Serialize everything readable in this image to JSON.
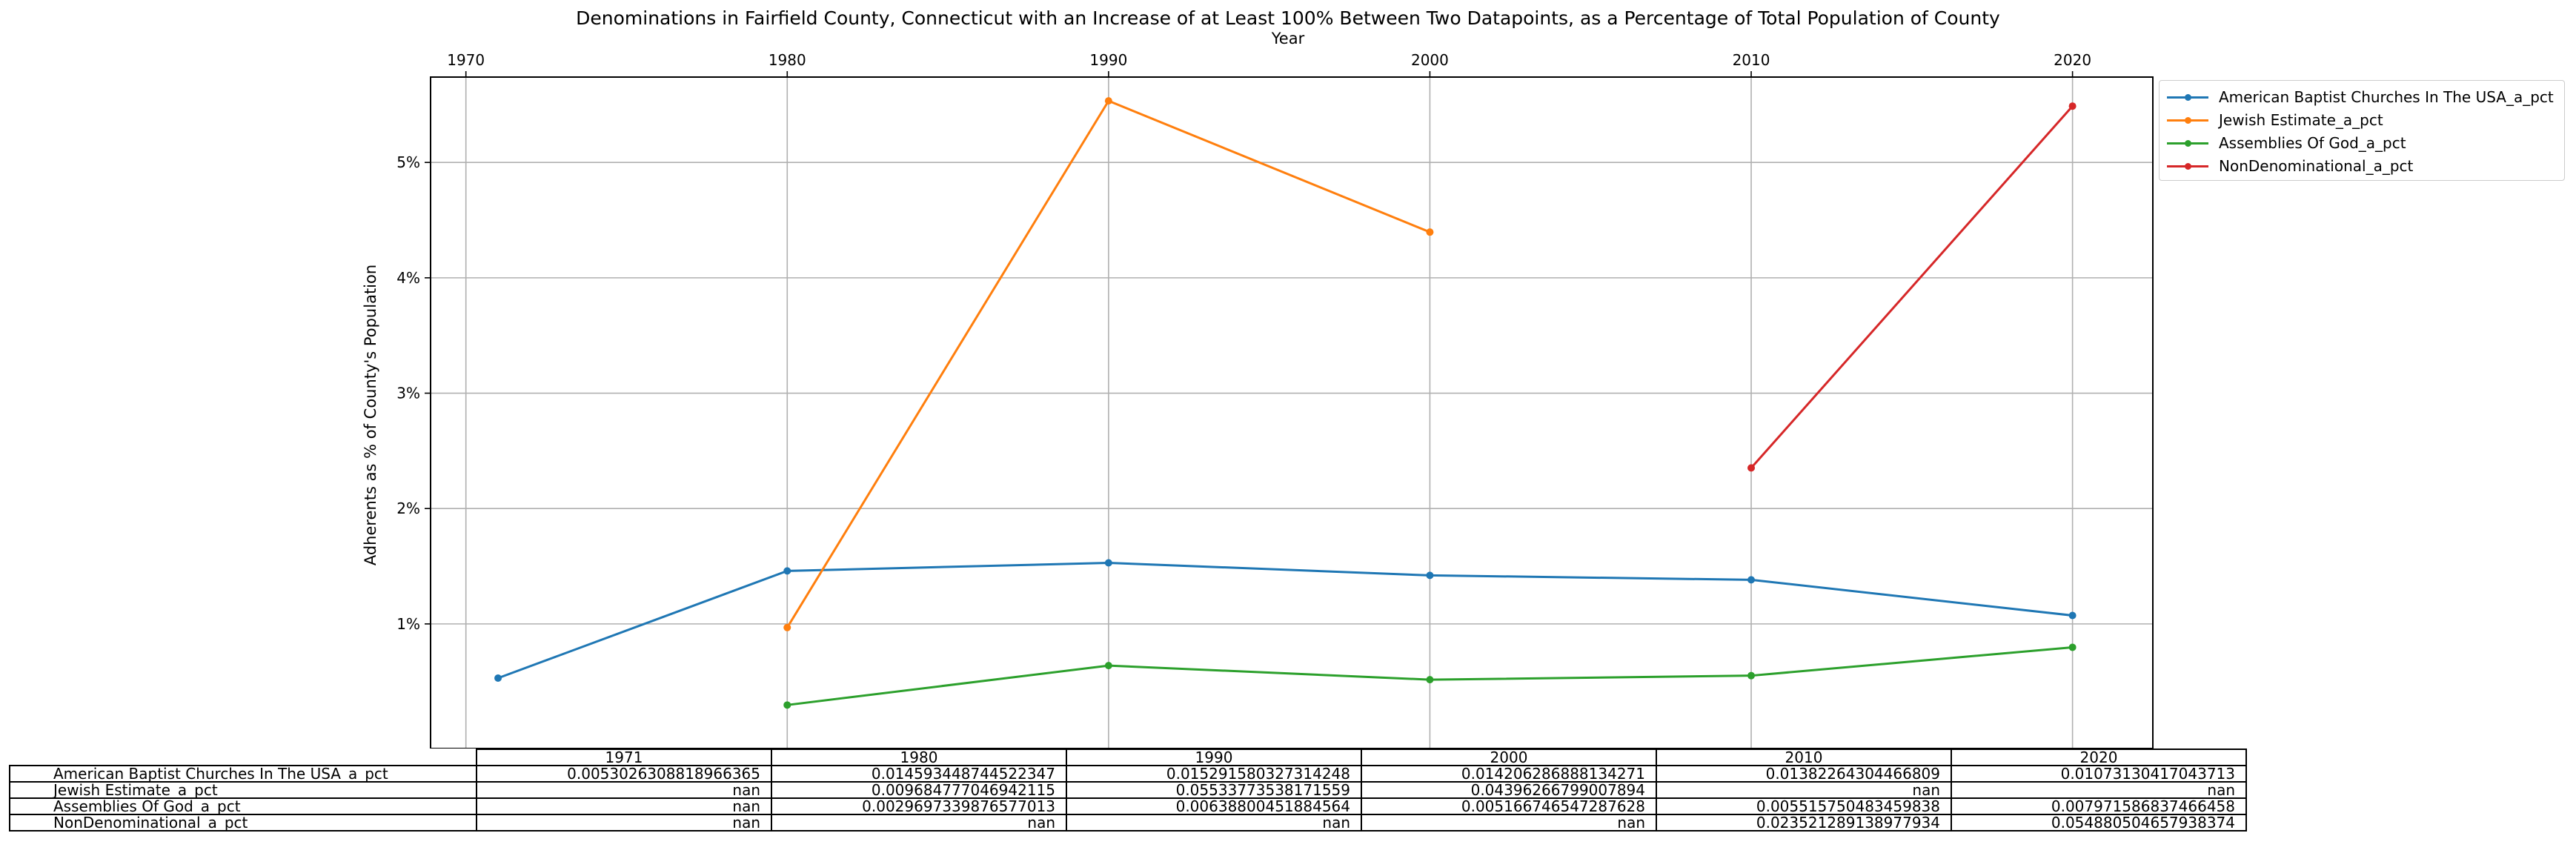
{
  "chart_data": {
    "type": "line",
    "title": "Denominations in Fairfield County, Connecticut with an Increase of at Least 100% Between Two Datapoints, as a Percentage of Total Population of County",
    "xlabel": "Year",
    "ylabel": "Adherents as % of County's Population",
    "x_ticks": [
      "1970",
      "1980",
      "1990",
      "2000",
      "2010",
      "2020"
    ],
    "x_tick_values": [
      1970,
      1980,
      1990,
      2000,
      2010,
      2020
    ],
    "y_ticks": [
      "1%",
      "2%",
      "3%",
      "4%",
      "5%"
    ],
    "y_tick_values": [
      0.01,
      0.02,
      0.03,
      0.04,
      0.05
    ],
    "xlim": [
      1968.9,
      2022.5
    ],
    "ylim": [
      -0.0008,
      0.0574
    ],
    "grid": true,
    "legend_position": "outside upper-right",
    "x": [
      1971,
      1980,
      1990,
      2000,
      2010,
      2020
    ],
    "series": [
      {
        "name": "American Baptist Churches In The USA_a_pct",
        "color": "#1f77b4",
        "values": [
          0.0053026308818966365,
          0.014593448744522347,
          0.015291580327314248,
          0.014206286888134271,
          0.01382264304466809,
          0.01073130417043713
        ]
      },
      {
        "name": "Jewish Estimate_a_pct",
        "color": "#ff7f0e",
        "values": [
          null,
          0.009684777046942115,
          0.05533773538171559,
          0.04396266799007894,
          null,
          null
        ]
      },
      {
        "name": "Assemblies Of God_a_pct",
        "color": "#2ca02c",
        "values": [
          null,
          0.0029697339876577013,
          0.00638800451884564,
          0.005166746547287628,
          0.005515750483459838,
          0.007971586837466458
        ]
      },
      {
        "name": "NonDenominational_a_pct",
        "color": "#d62728",
        "values": [
          null,
          null,
          null,
          null,
          0.023521289138977934,
          0.054880504657938374
        ]
      }
    ],
    "table": {
      "col_labels": [
        "1971",
        "1980",
        "1990",
        "2000",
        "2010",
        "2020"
      ],
      "rows": [
        {
          "label": "American Baptist Churches In The USA_a_pct",
          "cells": [
            "0.0053026308818966365",
            "0.014593448744522347",
            "0.015291580327314248",
            "0.014206286888134271",
            "0.01382264304466809",
            "0.01073130417043713"
          ]
        },
        {
          "label": "Jewish Estimate_a_pct",
          "cells": [
            "nan",
            "0.009684777046942115",
            "0.05533773538171559",
            "0.04396266799007894",
            "nan",
            "nan"
          ]
        },
        {
          "label": "Assemblies Of God_a_pct",
          "cells": [
            "nan",
            "0.0029697339876577013",
            "0.00638800451884564",
            "0.005166746547287628",
            "0.005515750483459838",
            "0.007971586837466458"
          ]
        },
        {
          "label": "NonDenominational_a_pct",
          "cells": [
            "nan",
            "nan",
            "nan",
            "nan",
            "0.023521289138977934",
            "0.054880504657938374"
          ]
        }
      ]
    }
  }
}
